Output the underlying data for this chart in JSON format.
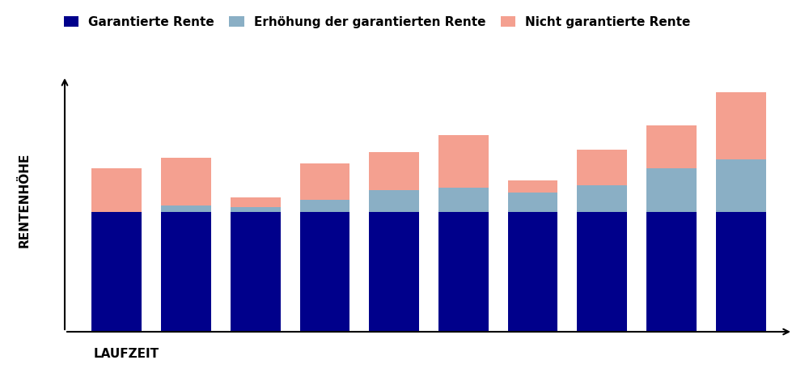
{
  "n_bars": 10,
  "guaranteed": [
    10.0,
    10.0,
    10.0,
    10.0,
    10.0,
    10.0,
    10.0,
    10.0,
    10.0,
    10.0
  ],
  "increase": [
    0.0,
    0.5,
    0.4,
    1.0,
    1.8,
    2.0,
    1.6,
    2.2,
    3.6,
    4.4
  ],
  "not_guaranteed": [
    3.6,
    4.0,
    0.8,
    3.0,
    3.2,
    4.4,
    1.0,
    3.0,
    3.6,
    5.6
  ],
  "color_guaranteed": "#00008B",
  "color_increase": "#8AAFC5",
  "color_not_guaranteed": "#F4A090",
  "legend_labels": [
    "Garantierte Rente",
    "Erhöhung der garantierten Rente",
    "Nicht garantierte Rente"
  ],
  "ylabel": "RENTENHÖHE",
  "xlabel": "LAUFZEIT",
  "background_color": "#ffffff",
  "bar_width": 0.72,
  "ylim": [
    0,
    22
  ],
  "figsize": [
    10.0,
    4.66
  ],
  "dpi": 100
}
